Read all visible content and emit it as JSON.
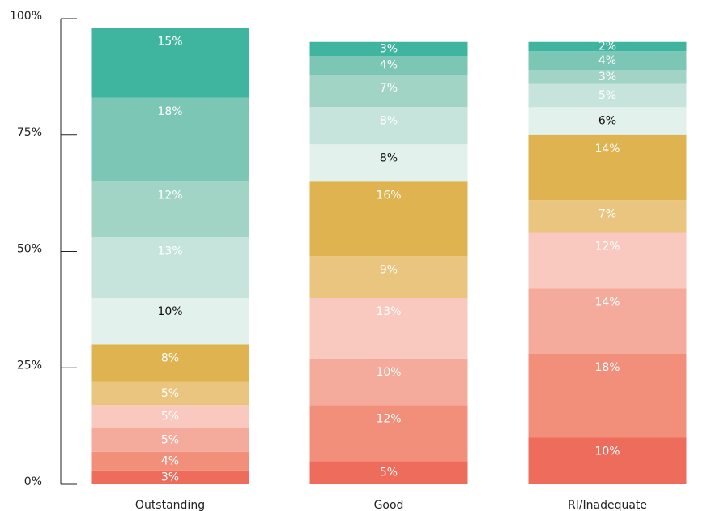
{
  "chart_data": {
    "type": "stacked_bar",
    "categories": [
      "Outstanding",
      "Good",
      "RI/Inadequate"
    ],
    "ylim": [
      0,
      100
    ],
    "yticks": [
      {
        "value": 0,
        "label": "0%"
      },
      {
        "value": 25,
        "label": "25%"
      },
      {
        "value": 50,
        "label": "50%"
      },
      {
        "value": 75,
        "label": "75%"
      },
      {
        "value": 100,
        "label": "100%"
      }
    ],
    "series": [
      {
        "color": "#ee6c5c",
        "text_color": "#ffffff",
        "values": [
          3,
          5,
          10
        ],
        "value_labels": [
          "3%",
          "5%",
          "10%"
        ]
      },
      {
        "color": "#f28f7b",
        "text_color": "#ffffff",
        "values": [
          4,
          12,
          18
        ],
        "value_labels": [
          "4%",
          "12%",
          "18%"
        ]
      },
      {
        "color": "#f5ab9b",
        "text_color": "#ffffff",
        "values": [
          5,
          10,
          14
        ],
        "value_labels": [
          "5%",
          "10%",
          "14%"
        ]
      },
      {
        "color": "#f9c8bf",
        "text_color": "#ffffff",
        "values": [
          5,
          13,
          12
        ],
        "value_labels": [
          "5%",
          "13%",
          "12%"
        ]
      },
      {
        "color": "#e9c57f",
        "text_color": "#ffffff",
        "values": [
          5,
          9,
          7
        ],
        "value_labels": [
          "5%",
          "9%",
          "7%"
        ]
      },
      {
        "color": "#dfb350",
        "text_color": "#ffffff",
        "values": [
          8,
          16,
          14
        ],
        "value_labels": [
          "8%",
          "16%",
          "14%"
        ]
      },
      {
        "color": "#e2f1ec",
        "text_color": "#111111",
        "values": [
          10,
          8,
          6
        ],
        "value_labels": [
          "10%",
          "8%",
          "6%"
        ]
      },
      {
        "color": "#c6e4dc",
        "text_color": "#ffffff",
        "values": [
          13,
          8,
          5
        ],
        "value_labels": [
          "13%",
          "8%",
          "5%"
        ]
      },
      {
        "color": "#a2d4c6",
        "text_color": "#ffffff",
        "values": [
          12,
          7,
          3
        ],
        "value_labels": [
          "12%",
          "7%",
          "3%"
        ]
      },
      {
        "color": "#7bc6b4",
        "text_color": "#ffffff",
        "values": [
          18,
          4,
          4
        ],
        "value_labels": [
          "18%",
          "4%",
          "4%"
        ]
      },
      {
        "color": "#3fb5a0",
        "text_color": "#ffffff",
        "values": [
          15,
          3,
          2
        ],
        "value_labels": [
          "15%",
          "3%",
          "2%"
        ]
      }
    ]
  }
}
